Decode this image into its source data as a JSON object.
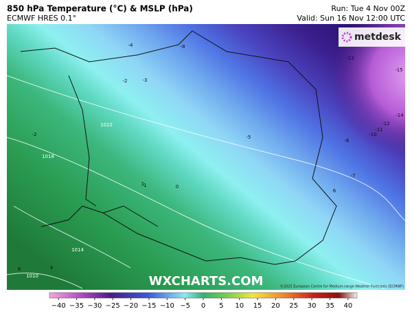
{
  "header": {
    "title": "850 hPa Temperature (°C) & MSLP (hPa)",
    "model": "ECMWF HRES 0.1°",
    "run": "Run: Tue 4 Nov 00Z",
    "valid": "Valid: Sun 16 Nov 12:00 UTC"
  },
  "map": {
    "contour_labels": [
      "-4",
      "-8",
      "-2",
      "-3",
      "-2",
      "-1",
      "0",
      "1",
      "-5",
      "-6",
      "-7",
      "-13",
      "-15",
      "-14",
      "-12",
      "-11",
      "-10",
      "6",
      "4",
      "8",
      "1022",
      "1018",
      "1014",
      "1010"
    ],
    "logo": "metdesk",
    "watermark": "WXCHARTS.COM",
    "credit": "©2025 European Centre for Medium-range Weather Forecasts (ECMWF)"
  },
  "colorbar": {
    "ticks": [
      {
        "value": -40,
        "label": "−40"
      },
      {
        "value": -35,
        "label": "−35"
      },
      {
        "value": -30,
        "label": "−30"
      },
      {
        "value": -25,
        "label": "−25"
      },
      {
        "value": -20,
        "label": "−20"
      },
      {
        "value": -15,
        "label": "−15"
      },
      {
        "value": -10,
        "label": "−10"
      },
      {
        "value": -5,
        "label": "−5"
      },
      0,
      5,
      10,
      15,
      20,
      25,
      30,
      35,
      40
    ],
    "lim": [
      -42.5,
      42.5
    ]
  }
}
